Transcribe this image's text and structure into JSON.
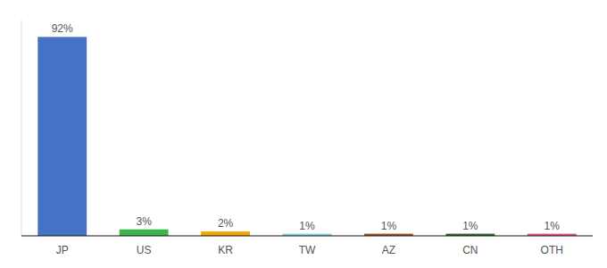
{
  "chart_data": {
    "type": "bar",
    "categories": [
      "JP",
      "US",
      "KR",
      "TW",
      "AZ",
      "CN",
      "OTH"
    ],
    "values": [
      92,
      3,
      2,
      1,
      1,
      1,
      1
    ],
    "value_labels": [
      "92%",
      "3%",
      "2%",
      "1%",
      "1%",
      "1%",
      "1%"
    ],
    "colors": [
      "#4472C4",
      "#3CB54A",
      "#F0A500",
      "#87CEEB",
      "#A0522D",
      "#2E6B2E",
      "#E75480"
    ],
    "ylim": [
      0,
      100
    ],
    "data_labels": true,
    "tick_labels": "x",
    "grid": false
  }
}
